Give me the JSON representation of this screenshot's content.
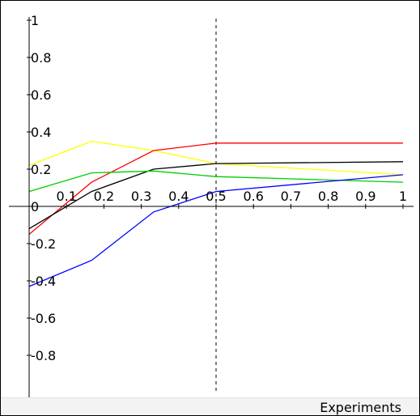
{
  "chart_data": {
    "type": "line",
    "xlabel": "Experiments",
    "ylabel": "",
    "title": "",
    "xlim": [
      0,
      1
    ],
    "ylim": [
      -1,
      1
    ],
    "xticks": [
      {
        "value": 0.1,
        "label": "0.1"
      },
      {
        "value": 0.2,
        "label": "0.2"
      },
      {
        "value": 0.3,
        "label": "0.3"
      },
      {
        "value": 0.4,
        "label": "0.4"
      },
      {
        "value": 0.5,
        "label": "0.5"
      },
      {
        "value": 0.6,
        "label": "0.6"
      },
      {
        "value": 0.7,
        "label": "0.7"
      },
      {
        "value": 0.8,
        "label": "0.8"
      },
      {
        "value": 0.9,
        "label": "0.9"
      },
      {
        "value": 1,
        "label": "1"
      }
    ],
    "yticks": [
      {
        "value": 1,
        "label": "1"
      },
      {
        "value": 0.8,
        "label": "0.8"
      },
      {
        "value": 0.6,
        "label": "0.6"
      },
      {
        "value": 0.4,
        "label": "0.4"
      },
      {
        "value": 0.2,
        "label": "0.2"
      },
      {
        "value": 0,
        "label": "0"
      },
      {
        "value": -0.2,
        "label": "-0.2"
      },
      {
        "value": -0.4,
        "label": "-0.4"
      },
      {
        "value": -0.6,
        "label": "-0.6"
      },
      {
        "value": -0.8,
        "label": "-0.8"
      }
    ],
    "cursor_x": 0.5,
    "grid": false,
    "series": [
      {
        "color": "#ffff00",
        "x": [
          0,
          0.167,
          0.333,
          0.5,
          1
        ],
        "y": [
          0.22,
          0.35,
          0.3,
          0.23,
          0.17
        ]
      },
      {
        "color": "#ff0000",
        "x": [
          0,
          0.167,
          0.333,
          0.5,
          1
        ],
        "y": [
          -0.15,
          0.13,
          0.3,
          0.34,
          0.34
        ]
      },
      {
        "color": "#000000",
        "x": [
          0,
          0.167,
          0.333,
          0.5,
          1
        ],
        "y": [
          -0.12,
          0.08,
          0.2,
          0.23,
          0.24
        ]
      },
      {
        "color": "#00cc00",
        "x": [
          0,
          0.167,
          0.333,
          0.5,
          1
        ],
        "y": [
          0.08,
          0.18,
          0.19,
          0.16,
          0.13
        ]
      },
      {
        "color": "#0000ff",
        "x": [
          0,
          0.167,
          0.333,
          0.5,
          1
        ],
        "y": [
          -0.43,
          -0.29,
          -0.03,
          0.08,
          0.17
        ]
      }
    ]
  }
}
